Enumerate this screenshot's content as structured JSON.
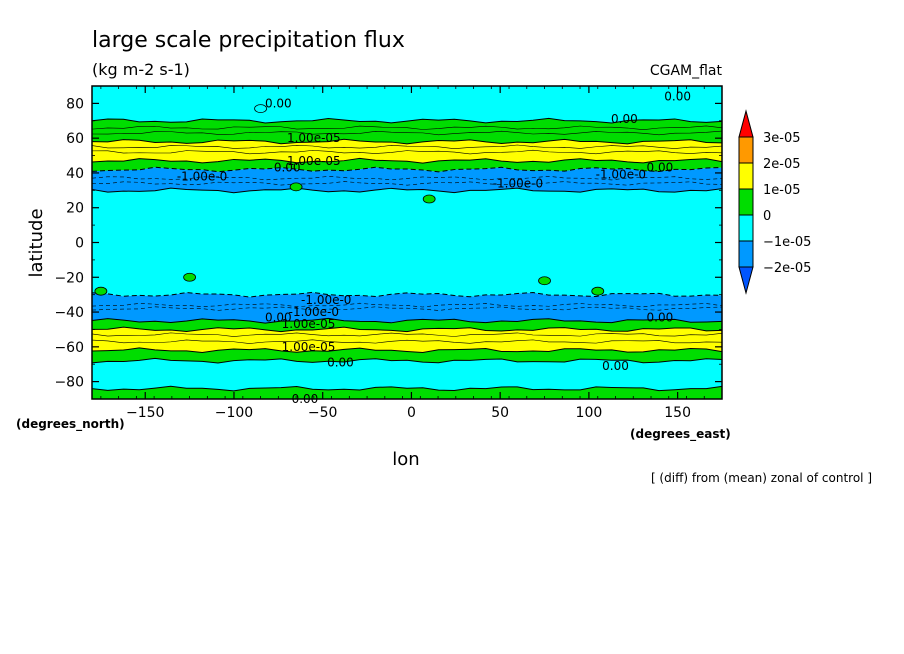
{
  "chart_data": {
    "type": "heatmap",
    "title": "large scale precipitation flux",
    "subtitle": "(kg m-2 s-1)",
    "experiment": "CGAM_flat",
    "xlabel": "lon",
    "ylabel": "latitude",
    "x_units": "(degrees_east)",
    "y_units": "(degrees_north)",
    "footnote": "[ (diff) from (mean) zonal of control ]",
    "xlim": [
      -180,
      175
    ],
    "ylim": [
      -90,
      90
    ],
    "xticks": [
      -150,
      -100,
      -50,
      0,
      50,
      100,
      150
    ],
    "yticks": [
      -80,
      -60,
      -40,
      -20,
      0,
      20,
      40,
      60,
      80
    ],
    "colorbar": {
      "labels": [
        "3e-05",
        "2e-05",
        "1e-05",
        "0",
        "−1e-05",
        "−2e-05"
      ],
      "colors": [
        "#ff0000",
        "#ff9900",
        "#ffff00",
        "#00dd00",
        "#00ffff",
        "#0099ff",
        "#0055ff"
      ]
    },
    "bands": [
      {
        "lat0": -90,
        "lat1": -84,
        "level": "0 to 1e-05",
        "color": "#00dd00"
      },
      {
        "lat0": -84,
        "lat1": -68,
        "level": "-1e-05 to 0",
        "color": "#00ffff"
      },
      {
        "lat0": -68,
        "lat1": -62,
        "level": "0 to 1e-05",
        "color": "#00dd00"
      },
      {
        "lat0": -62,
        "lat1": -50,
        "level": "1e-05 to 2e-05",
        "color": "#ffff00"
      },
      {
        "lat0": -50,
        "lat1": -45,
        "level": "0 to 1e-05",
        "color": "#00dd00"
      },
      {
        "lat0": -45,
        "lat1": -30,
        "level": "-2e-05 to -1e-05",
        "color": "#0099ff"
      },
      {
        "lat0": -30,
        "lat1": 30,
        "level": "-1e-05 to 0",
        "color": "#00ffff"
      },
      {
        "lat0": 30,
        "lat1": 42,
        "level": "-2e-05 to -1e-05",
        "color": "#0099ff"
      },
      {
        "lat0": 42,
        "lat1": 47,
        "level": "0 to 1e-05",
        "color": "#00dd00"
      },
      {
        "lat0": 47,
        "lat1": 58,
        "level": "1e-05 to 2e-05",
        "color": "#ffff00"
      },
      {
        "lat0": 58,
        "lat1": 70,
        "level": "0 to 1e-05",
        "color": "#00dd00"
      },
      {
        "lat0": 70,
        "lat1": 90,
        "level": "-1e-05 to 0",
        "color": "#00ffff"
      }
    ],
    "contour_labels": [
      {
        "text": "0.00",
        "lon": -75,
        "lat": 80
      },
      {
        "text": "0.00",
        "lon": 120,
        "lat": 71
      },
      {
        "text": "0.00",
        "lon": 150,
        "lat": 84
      },
      {
        "text": "1.00e-05",
        "lon": -55,
        "lat": 60
      },
      {
        "text": "1.00e-05",
        "lon": -55,
        "lat": 47
      },
      {
        "text": "0.00",
        "lon": -70,
        "lat": 43
      },
      {
        "text": "0.00",
        "lon": 140,
        "lat": 43
      },
      {
        "text": "-1.00e-0",
        "lon": -118,
        "lat": 38
      },
      {
        "text": "-1.00e-0",
        "lon": 60,
        "lat": 34
      },
      {
        "text": "-1.00e-0",
        "lon": 118,
        "lat": 39
      },
      {
        "text": "-1.00e-0",
        "lon": -48,
        "lat": -33
      },
      {
        "text": "-1.00e-0",
        "lon": -55,
        "lat": -40
      },
      {
        "text": "0.00",
        "lon": -75,
        "lat": -43
      },
      {
        "text": "1.00e-05",
        "lon": -58,
        "lat": -47
      },
      {
        "text": "0.00",
        "lon": 140,
        "lat": -43
      },
      {
        "text": "1.00e-05",
        "lon": -58,
        "lat": -60
      },
      {
        "text": "0.00",
        "lon": -40,
        "lat": -69
      },
      {
        "text": "0.00",
        "lon": 115,
        "lat": -71
      },
      {
        "text": "0.00",
        "lon": -60,
        "lat": -90
      }
    ]
  }
}
